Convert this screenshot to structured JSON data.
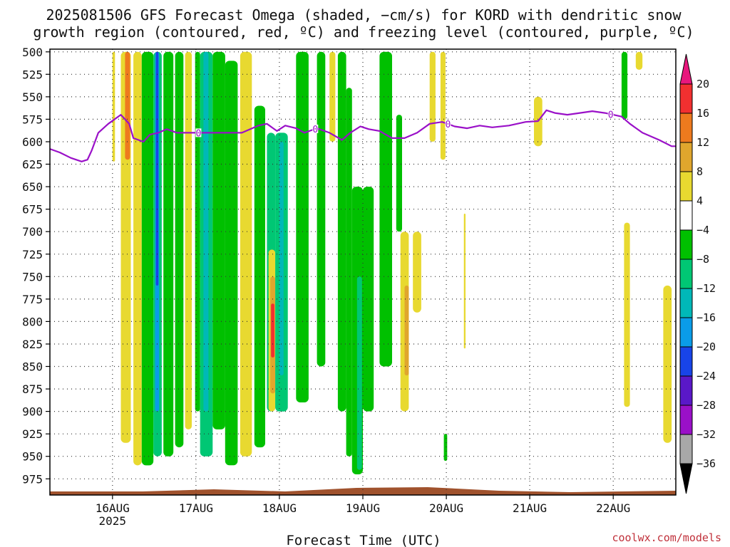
{
  "title_line1": "2025081506 GFS Forecast Omega (shaded, −cm/s) for KORD with dendritic snow",
  "title_line2": "growth region (contoured, red, ºC) and freezing level (contoured, purple, ºC)",
  "xlabel": "Forecast Time (UTC)",
  "credit": "coolwx.com/models",
  "chart_data": {
    "type": "heatmap",
    "y_axis": {
      "label": "",
      "inverted": true,
      "range": [
        497,
        993
      ],
      "ticks": [
        500,
        525,
        550,
        575,
        600,
        625,
        650,
        675,
        700,
        725,
        750,
        775,
        800,
        825,
        850,
        875,
        900,
        925,
        950,
        975
      ]
    },
    "x_axis": {
      "range": [
        0,
        7.5
      ],
      "ticks": [
        {
          "x": 0.75,
          "label": "16AUG",
          "sub": "2025"
        },
        {
          "x": 1.75,
          "label": "17AUG",
          "sub": ""
        },
        {
          "x": 2.75,
          "label": "18AUG",
          "sub": ""
        },
        {
          "x": 3.75,
          "label": "19AUG",
          "sub": ""
        },
        {
          "x": 4.75,
          "label": "20AUG",
          "sub": ""
        },
        {
          "x": 5.75,
          "label": "21AUG",
          "sub": ""
        },
        {
          "x": 6.75,
          "label": "22AUG",
          "sub": ""
        }
      ]
    },
    "grid": true,
    "colorbar": {
      "levels": [
        "20",
        "16",
        "12",
        "8",
        "4",
        "−4",
        "−8",
        "−12",
        "−16",
        "−20",
        "−24",
        "−28",
        "−32",
        "−36"
      ],
      "colors": [
        "#e8177d",
        "#f23030",
        "#ee7a1e",
        "#e0a62d",
        "#e8d930",
        "#ffffff",
        "#00c000",
        "#00c774",
        "#00b8b8",
        "#0a9ce8",
        "#1844e8",
        "#5a18c8",
        "#9a10c8",
        "#a8a8a8",
        "#000000"
      ]
    },
    "freezing_level": {
      "color": "#9a10c8",
      "label": "0",
      "x": [
        0,
        0.12,
        0.25,
        0.38,
        0.45,
        0.5,
        0.58,
        0.7,
        0.85,
        0.95,
        1.0,
        1.12,
        1.2,
        1.3,
        1.4,
        1.52,
        1.65,
        1.8,
        1.95,
        2.1,
        2.3,
        2.5,
        2.6,
        2.72,
        2.82,
        2.95,
        3.05,
        3.2,
        3.35,
        3.5,
        3.6,
        3.72,
        3.82,
        3.95,
        4.1,
        4.25,
        4.4,
        4.55,
        4.7,
        4.85,
        5.0,
        5.15,
        5.3,
        5.5,
        5.7,
        5.85,
        5.95,
        6.05,
        6.2,
        6.35,
        6.5,
        6.65,
        6.75,
        6.85,
        6.95,
        7.1,
        7.3,
        7.45,
        7.5
      ],
      "y": [
        608,
        612,
        618,
        622,
        620,
        610,
        590,
        580,
        570,
        580,
        596,
        600,
        592,
        590,
        586,
        590,
        590,
        590,
        590,
        590,
        590,
        582,
        580,
        588,
        582,
        585,
        590,
        585,
        590,
        598,
        590,
        583,
        586,
        588,
        596,
        596,
        590,
        580,
        578,
        583,
        585,
        582,
        584,
        582,
        578,
        577,
        565,
        568,
        570,
        568,
        566,
        568,
        570,
        572,
        580,
        590,
        598,
        605,
        605
      ]
    },
    "omega_regions": [
      {
        "x": [
          0.75,
          0.78
        ],
        "p": [
          500,
          622
        ],
        "value": 6
      },
      {
        "x": [
          0.85,
          0.97
        ],
        "p": [
          500,
          935
        ],
        "value": 6
      },
      {
        "x": [
          0.9,
          0.96
        ],
        "p": [
          500,
          620
        ],
        "value": 12
      },
      {
        "x": [
          1.0,
          1.1
        ],
        "p": [
          500,
          960
        ],
        "value": 6
      },
      {
        "x": [
          1.1,
          1.24
        ],
        "p": [
          500,
          960
        ],
        "value": -6
      },
      {
        "x": [
          1.24,
          1.34
        ],
        "p": [
          500,
          950
        ],
        "value": -10
      },
      {
        "x": [
          1.26,
          1.31
        ],
        "p": [
          500,
          900
        ],
        "value": -16
      },
      {
        "x": [
          1.27,
          1.3
        ],
        "p": [
          500,
          760
        ],
        "value": -22
      },
      {
        "x": [
          1.36,
          1.48
        ],
        "p": [
          500,
          950
        ],
        "value": -6
      },
      {
        "x": [
          1.5,
          1.6
        ],
        "p": [
          500,
          940
        ],
        "value": -6
      },
      {
        "x": [
          1.62,
          1.7
        ],
        "p": [
          500,
          920
        ],
        "value": 6
      },
      {
        "x": [
          1.74,
          1.8
        ],
        "p": [
          500,
          900
        ],
        "value": -6
      },
      {
        "x": [
          1.8,
          1.95
        ],
        "p": [
          500,
          950
        ],
        "value": -10
      },
      {
        "x": [
          1.84,
          1.9
        ],
        "p": [
          500,
          900
        ],
        "value": -14
      },
      {
        "x": [
          1.95,
          2.1
        ],
        "p": [
          500,
          920
        ],
        "value": -6
      },
      {
        "x": [
          2.1,
          2.25
        ],
        "p": [
          510,
          960
        ],
        "value": -6
      },
      {
        "x": [
          2.28,
          2.42
        ],
        "p": [
          500,
          950
        ],
        "value": 6
      },
      {
        "x": [
          2.45,
          2.58
        ],
        "p": [
          560,
          940
        ],
        "value": -6
      },
      {
        "x": [
          2.6,
          2.7
        ],
        "p": [
          590,
          900
        ],
        "value": -10
      },
      {
        "x": [
          2.62,
          2.7
        ],
        "p": [
          720,
          900
        ],
        "value": 6
      },
      {
        "x": [
          2.64,
          2.7
        ],
        "p": [
          750,
          880
        ],
        "value": 10
      },
      {
        "x": [
          2.65,
          2.69
        ],
        "p": [
          780,
          840
        ],
        "value": 16
      },
      {
        "x": [
          2.7,
          2.85
        ],
        "p": [
          590,
          900
        ],
        "value": -10
      },
      {
        "x": [
          2.75,
          2.8
        ],
        "p": [
          600,
          860
        ],
        "value": -14
      },
      {
        "x": [
          2.95,
          3.1
        ],
        "p": [
          500,
          890
        ],
        "value": -6
      },
      {
        "x": [
          3.2,
          3.3
        ],
        "p": [
          500,
          850
        ],
        "value": -6
      },
      {
        "x": [
          3.35,
          3.42
        ],
        "p": [
          500,
          600
        ],
        "value": 6
      },
      {
        "x": [
          3.45,
          3.55
        ],
        "p": [
          500,
          900
        ],
        "value": -6
      },
      {
        "x": [
          3.55,
          3.62
        ],
        "p": [
          540,
          950
        ],
        "value": -6
      },
      {
        "x": [
          3.62,
          3.75
        ],
        "p": [
          650,
          970
        ],
        "value": -6
      },
      {
        "x": [
          3.68,
          3.74
        ],
        "p": [
          750,
          965
        ],
        "value": -10
      },
      {
        "x": [
          3.75,
          3.88
        ],
        "p": [
          650,
          900
        ],
        "value": -6
      },
      {
        "x": [
          3.95,
          4.1
        ],
        "p": [
          500,
          850
        ],
        "value": -6
      },
      {
        "x": [
          4.15,
          4.22
        ],
        "p": [
          570,
          700
        ],
        "value": -6
      },
      {
        "x": [
          4.2,
          4.3
        ],
        "p": [
          700,
          900
        ],
        "value": 6
      },
      {
        "x": [
          4.25,
          4.3
        ],
        "p": [
          760,
          860
        ],
        "value": 10
      },
      {
        "x": [
          4.35,
          4.45
        ],
        "p": [
          700,
          790
        ],
        "value": 6
      },
      {
        "x": [
          4.55,
          4.62
        ],
        "p": [
          500,
          600
        ],
        "value": 6
      },
      {
        "x": [
          4.68,
          4.74
        ],
        "p": [
          500,
          620
        ],
        "value": 6
      },
      {
        "x": [
          4.72,
          4.76
        ],
        "p": [
          925,
          955
        ],
        "value": -6
      },
      {
        "x": [
          4.96,
          4.98
        ],
        "p": [
          680,
          830
        ],
        "value": 6
      },
      {
        "x": [
          5.8,
          5.9
        ],
        "p": [
          550,
          605
        ],
        "value": 6
      },
      {
        "x": [
          6.85,
          6.92
        ],
        "p": [
          500,
          575
        ],
        "value": -6
      },
      {
        "x": [
          6.88,
          6.95
        ],
        "p": [
          690,
          895
        ],
        "value": 6
      },
      {
        "x": [
          7.02,
          7.1
        ],
        "p": [
          500,
          520
        ],
        "value": 6
      },
      {
        "x": [
          7.35,
          7.45
        ],
        "p": [
          760,
          935
        ],
        "value": 6
      }
    ]
  }
}
